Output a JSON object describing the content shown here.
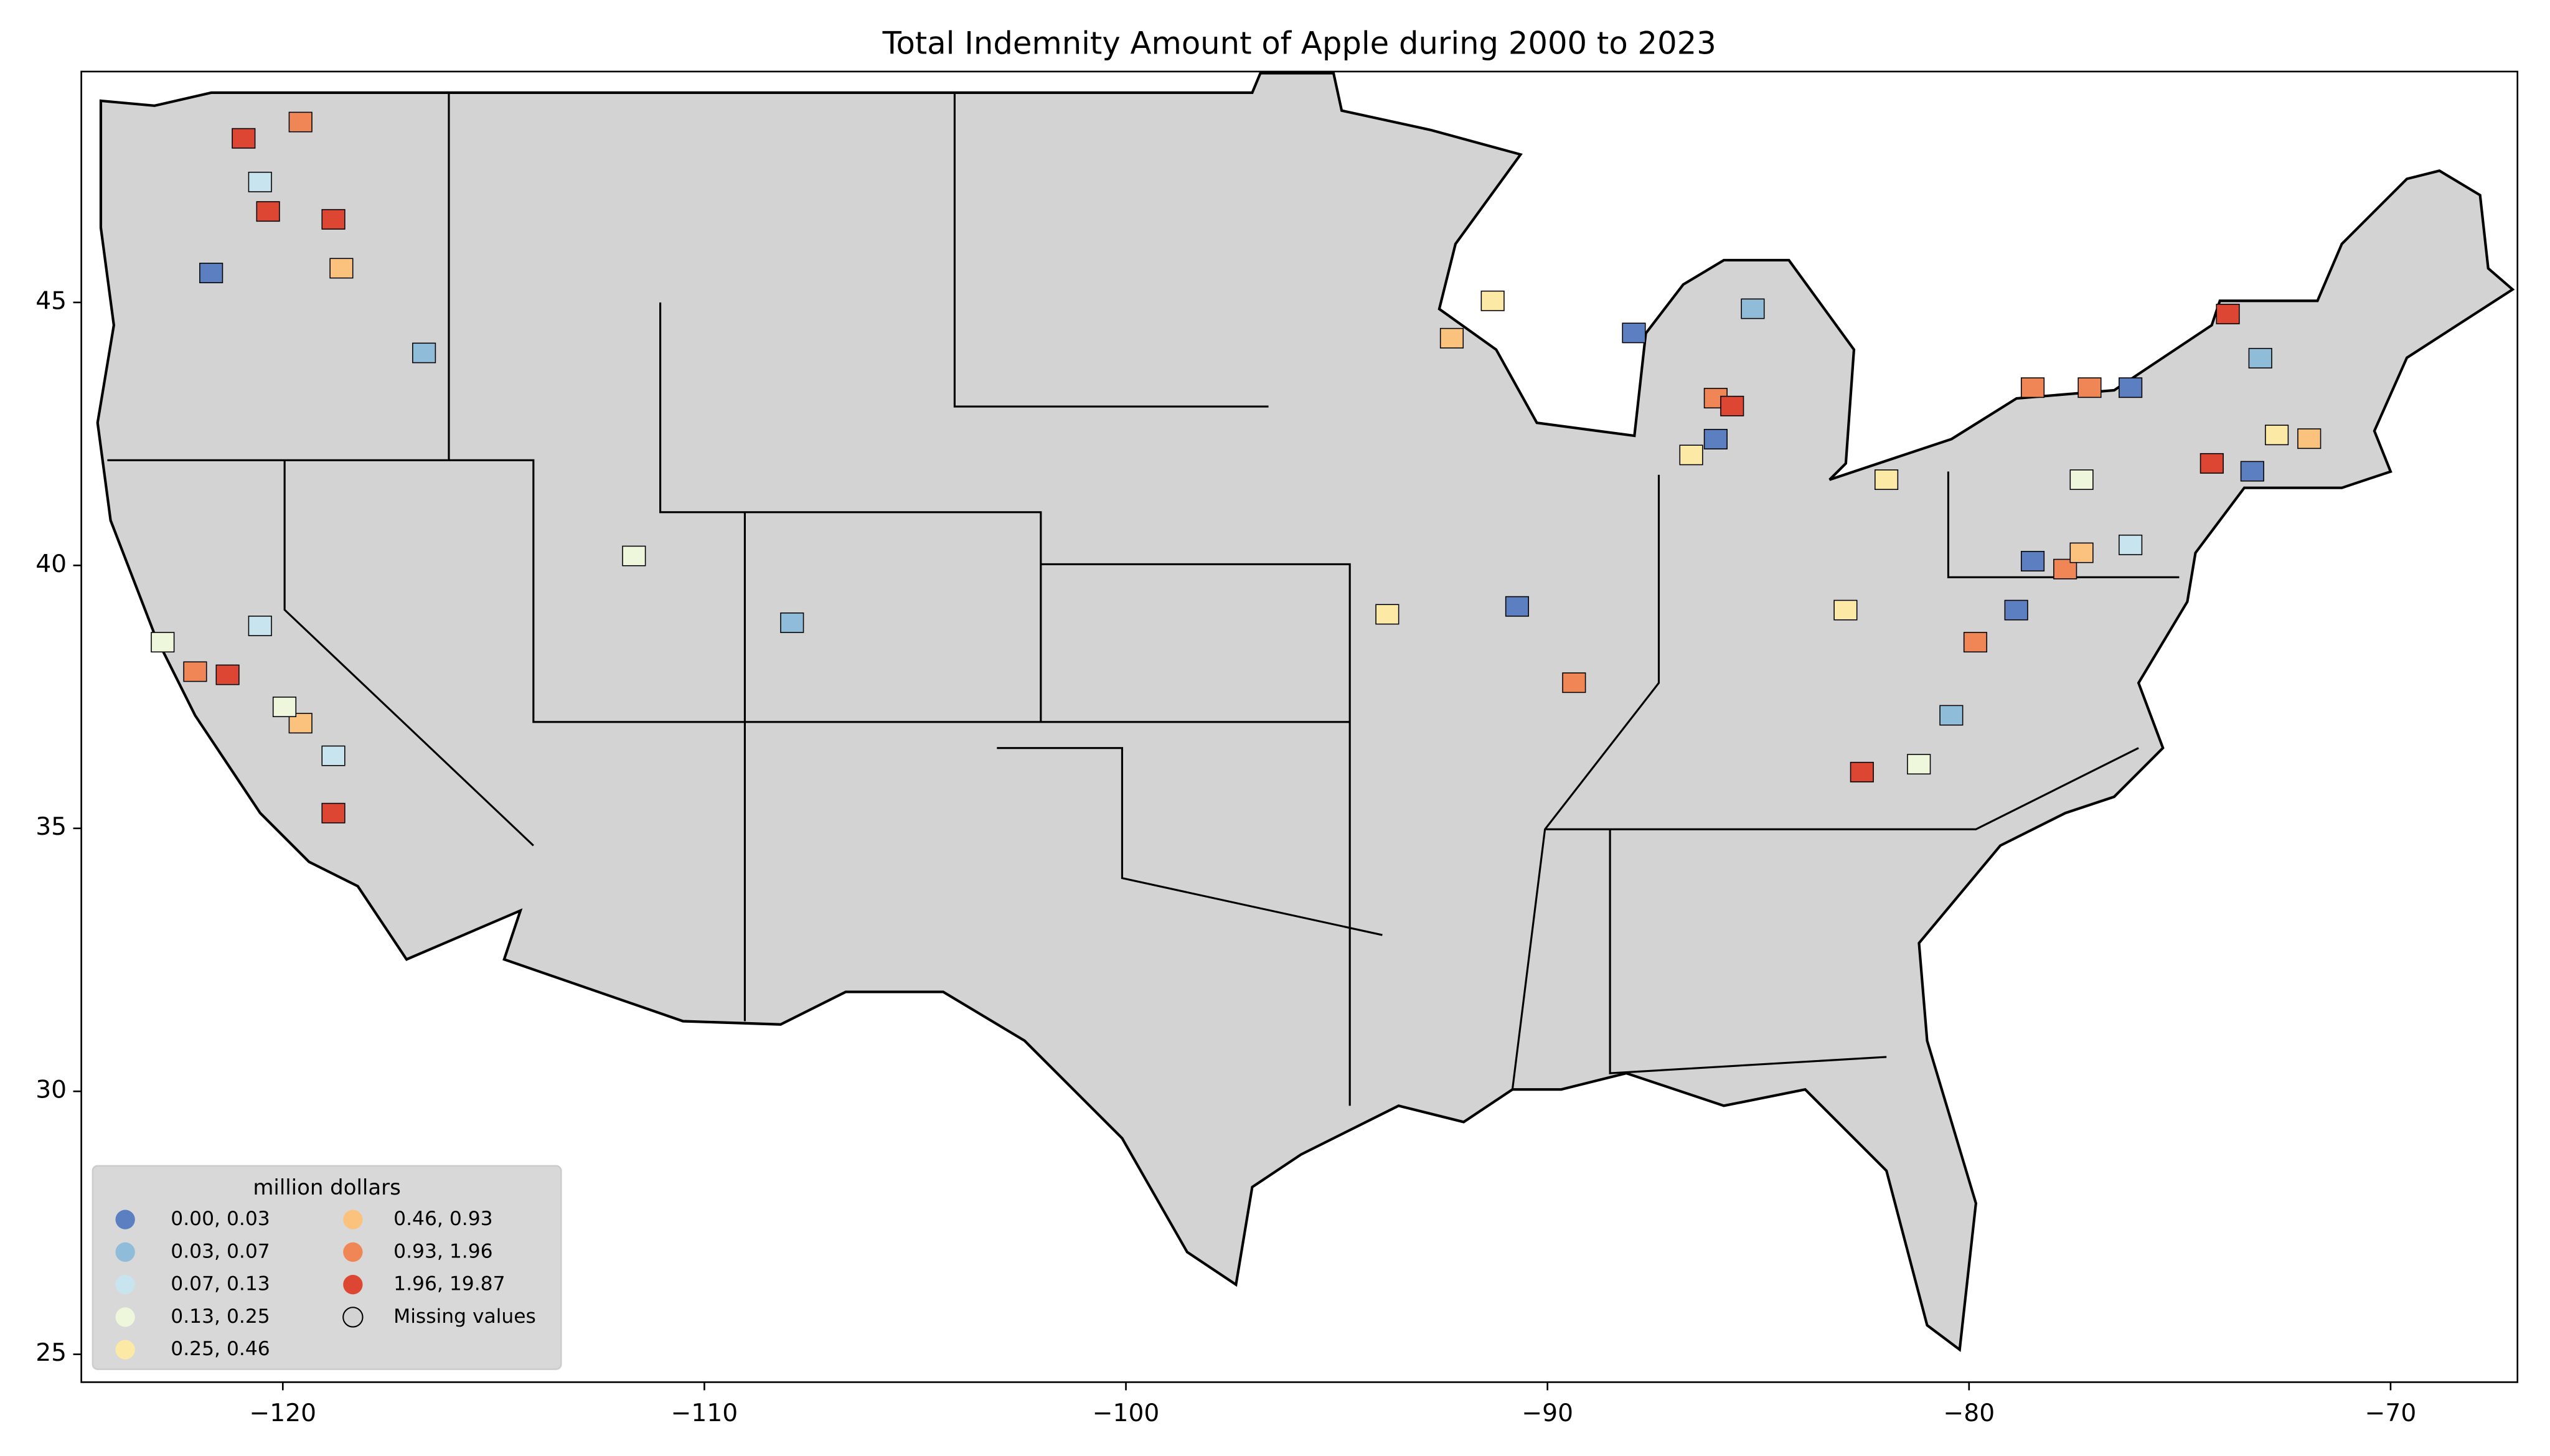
{
  "chart_data": {
    "type": "choropleth",
    "title": "Total Indemnity Amount of Apple during 2000 to 2023",
    "xlim": [
      -124.78,
      -66.99
    ],
    "ylim": [
      24.47,
      49.39
    ],
    "xticks": [
      {
        "value": -120,
        "label": "−120"
      },
      {
        "value": -110,
        "label": "−110"
      },
      {
        "value": -100,
        "label": "−100"
      },
      {
        "value": -90,
        "label": "−90"
      },
      {
        "value": -80,
        "label": "−80"
      },
      {
        "value": -70,
        "label": "−70"
      }
    ],
    "yticks": [
      25,
      30,
      35,
      40,
      45
    ],
    "base_color": "#d3d3d3",
    "legend": {
      "title": "million dollars",
      "location": "lower left",
      "classes": [
        {
          "label": "0.00,  0.03",
          "color": "#5b7fc0"
        },
        {
          "label": "0.03,  0.07",
          "color": "#8fbcd9"
        },
        {
          "label": "0.07,  0.13",
          "color": "#c8e4ef"
        },
        {
          "label": "0.13,  0.25",
          "color": "#eef6dc"
        },
        {
          "label": "0.25,  0.46",
          "color": "#fde9a6"
        },
        {
          "label": "0.46,  0.93",
          "color": "#fbc27e"
        },
        {
          "label": "0.93,  1.96",
          "color": "#f08656"
        },
        {
          "label": "1.96, 19.87",
          "color": "#dd4633"
        }
      ],
      "missing": "Missing values"
    },
    "regions": {
      "lon": [
        -120.93,
        -120.35,
        -119.58,
        -118.8,
        -118.61,
        -121.7,
        -120.54,
        -121.31,
        -122.08,
        -119.58,
        -118.8,
        -118.8,
        -120.54,
        -122.85,
        -119.96,
        -107.92,
        -111.67,
        -116.65,
        -91.3,
        -92.27,
        -86.01,
        -85.62,
        -86.01,
        -86.59,
        -87.95,
        -85.13,
        -89.37,
        -90.72,
        -93.8,
        -76.17,
        -78.49,
        -77.14,
        -73.86,
        -73.09,
        -74.24,
        -73.28,
        -71.93,
        -72.7,
        -78.49,
        -77.72,
        -77.33,
        -76.17,
        -77.33,
        -78.88,
        -79.85,
        -80.42,
        -82.54,
        -81.19,
        -81.96,
        -82.93
      ],
      "lat": [
        48.12,
        46.73,
        48.43,
        46.58,
        45.65,
        45.56,
        47.29,
        37.92,
        37.98,
        37.0,
        36.38,
        35.29,
        38.85,
        38.54,
        37.31,
        38.91,
        40.18,
        44.04,
        45.03,
        44.32,
        43.18,
        43.03,
        42.4,
        42.1,
        44.42,
        44.88,
        37.77,
        39.22,
        39.07,
        43.38,
        43.38,
        43.38,
        44.78,
        43.94,
        41.94,
        41.79,
        42.41,
        42.48,
        40.08,
        39.93,
        40.24,
        40.39,
        41.63,
        39.15,
        38.54,
        37.15,
        36.07,
        36.22,
        41.63,
        39.15
      ],
      "class": [
        7,
        7,
        6,
        7,
        5,
        0,
        2,
        7,
        6,
        5,
        2,
        7,
        2,
        3,
        3,
        1,
        3,
        1,
        4,
        5,
        6,
        7,
        0,
        4,
        0,
        1,
        6,
        0,
        4,
        0,
        6,
        6,
        7,
        1,
        7,
        0,
        5,
        4,
        0,
        6,
        5,
        2,
        3,
        0,
        6,
        1,
        7,
        3,
        4,
        4
      ]
    }
  }
}
